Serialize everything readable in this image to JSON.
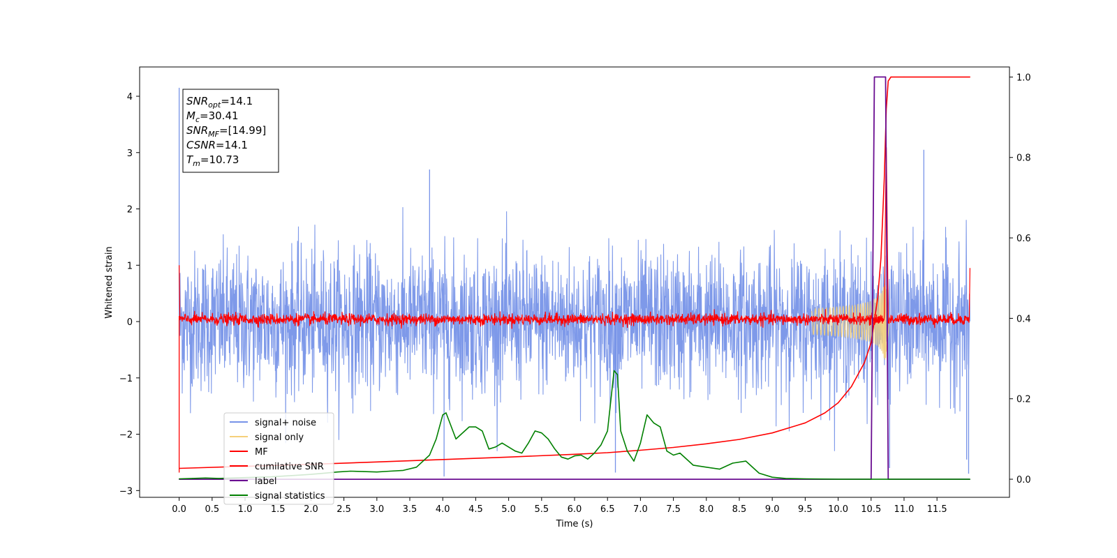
{
  "chart_data": {
    "type": "line",
    "xlabel": "Time (s)",
    "ylabel": "Whitened strain",
    "xlim": [
      -0.6,
      12.6
    ],
    "ylim": [
      -3.12,
      4.52
    ],
    "ylim_right": [
      -0.045,
      1.025
    ],
    "x_ticks": [
      0.0,
      0.5,
      1.0,
      1.5,
      2.0,
      2.5,
      3.0,
      3.5,
      4.0,
      4.5,
      5.0,
      5.5,
      6.0,
      6.5,
      7.0,
      7.5,
      8.0,
      8.5,
      9.0,
      9.5,
      10.0,
      10.5,
      11.0,
      11.5
    ],
    "x_tick_labels": [
      "0.0",
      "0.5",
      "1.0",
      "1.5",
      "2.0",
      "2.5",
      "3.0",
      "3.5",
      "4.0",
      "4.5",
      "5.0",
      "5.5",
      "6.0",
      "6.5",
      "7.0",
      "7.5",
      "8.0",
      "8.5",
      "9.0",
      "9.5",
      "10.0",
      "10.5",
      "11.0",
      "11.5"
    ],
    "y_ticks": [
      -3,
      -2,
      -1,
      0,
      1,
      2,
      3,
      4
    ],
    "y_tick_labels": [
      "−3",
      "−2",
      "−1",
      "0",
      "1",
      "2",
      "3",
      "4"
    ],
    "y_right_ticks": [
      0.0,
      0.2,
      0.4,
      0.6,
      0.8,
      1.0
    ],
    "y_right_tick_labels": [
      "0.0",
      "0.2",
      "0.4",
      "0.6",
      "0.8",
      "1.0"
    ],
    "legend_placement": "lower-left",
    "grid": false,
    "annotation": {
      "lines": [
        {
          "sym": "SNR",
          "sub": "opt",
          "val": "=14.1"
        },
        {
          "sym": "M",
          "sub": "c",
          "val": "=30.41"
        },
        {
          "sym": "SNR",
          "sub": "MF",
          "val": "=[14.99]"
        },
        {
          "sym": "CSNR",
          "sub": "",
          "val": "=14.1"
        },
        {
          "sym": "T",
          "sub": "m",
          "val": "=10.73"
        }
      ]
    },
    "series": [
      {
        "name": "signal+ noise",
        "axis": "left",
        "color": "#7793e8",
        "kind": "noise",
        "amplitude_std": 0.62,
        "outlier_spikes": [
          [
            0.0,
            4.15
          ],
          [
            3.8,
            2.7
          ],
          [
            4.02,
            -2.75
          ],
          [
            6.62,
            -2.68
          ],
          [
            11.3,
            3.05
          ],
          [
            10.78,
            -2.6
          ],
          [
            11.98,
            -2.7
          ],
          [
            11.95,
            -2.45
          ]
        ]
      },
      {
        "name": "signal only",
        "axis": "left",
        "color": "#f5d07a",
        "kind": "chirp",
        "merger_time": 10.73,
        "peak_amplitude": 1.7
      },
      {
        "name": "MF",
        "axis": "left",
        "color": "#ff0000",
        "kind": "mf",
        "baseline": 0.04,
        "noise_std": 0.05,
        "edge_points": [
          [
            0.0,
            1.0
          ],
          [
            0.0,
            -2.68
          ],
          [
            12.0,
            0.95
          ],
          [
            12.0,
            0.0
          ]
        ],
        "peak": [
          10.73,
          3.2
        ]
      },
      {
        "name": "cumilative SNR",
        "axis": "right",
        "color": "#ff0000",
        "x": [
          0.0,
          1.0,
          2.0,
          3.0,
          4.0,
          5.0,
          6.0,
          6.5,
          7.0,
          7.5,
          8.0,
          8.5,
          9.0,
          9.5,
          9.8,
          10.0,
          10.2,
          10.4,
          10.5,
          10.6,
          10.65,
          10.7,
          10.73,
          10.76,
          10.8,
          11.0,
          12.0
        ],
        "y": [
          0.027,
          0.032,
          0.037,
          0.043,
          0.049,
          0.055,
          0.062,
          0.066,
          0.072,
          0.079,
          0.088,
          0.099,
          0.115,
          0.14,
          0.165,
          0.19,
          0.23,
          0.29,
          0.34,
          0.45,
          0.55,
          0.75,
          0.92,
          0.99,
          1.0,
          1.0,
          1.0
        ]
      },
      {
        "name": "label",
        "axis": "right",
        "color": "#6a0d91",
        "x": [
          0.0,
          10.5,
          10.55,
          10.65,
          10.68,
          10.72,
          10.76,
          12.0
        ],
        "y": [
          0.0,
          0.0,
          1.0,
          1.0,
          1.0,
          1.0,
          0.0,
          0.0
        ]
      },
      {
        "name": "signal statistics",
        "axis": "right",
        "color": "#008000",
        "x": [
          0.0,
          0.2,
          0.4,
          0.6,
          0.8,
          1.0,
          1.2,
          1.4,
          1.6,
          1.8,
          2.0,
          2.2,
          2.4,
          2.6,
          2.8,
          3.0,
          3.2,
          3.4,
          3.6,
          3.8,
          3.9,
          4.0,
          4.05,
          4.2,
          4.4,
          4.5,
          4.6,
          4.7,
          4.8,
          4.9,
          5.0,
          5.1,
          5.2,
          5.3,
          5.4,
          5.5,
          5.6,
          5.7,
          5.8,
          5.9,
          6.0,
          6.1,
          6.2,
          6.3,
          6.4,
          6.5,
          6.6,
          6.65,
          6.7,
          6.8,
          6.9,
          7.0,
          7.1,
          7.2,
          7.3,
          7.4,
          7.5,
          7.6,
          7.8,
          8.0,
          8.2,
          8.4,
          8.6,
          8.8,
          9.0,
          9.2,
          9.5,
          10.0,
          10.5,
          11.0,
          11.5,
          12.0
        ],
        "y": [
          0.001,
          0.002,
          0.003,
          0.002,
          0.003,
          0.004,
          0.005,
          0.006,
          0.008,
          0.01,
          0.012,
          0.015,
          0.018,
          0.02,
          0.019,
          0.018,
          0.02,
          0.022,
          0.03,
          0.06,
          0.1,
          0.16,
          0.165,
          0.1,
          0.13,
          0.13,
          0.12,
          0.075,
          0.08,
          0.09,
          0.08,
          0.07,
          0.065,
          0.09,
          0.12,
          0.115,
          0.1,
          0.075,
          0.055,
          0.05,
          0.058,
          0.06,
          0.05,
          0.065,
          0.085,
          0.12,
          0.27,
          0.26,
          0.12,
          0.07,
          0.045,
          0.09,
          0.16,
          0.14,
          0.13,
          0.07,
          0.06,
          0.065,
          0.035,
          0.03,
          0.025,
          0.04,
          0.045,
          0.015,
          0.005,
          0.002,
          0.001,
          0.0,
          0.0,
          0.0,
          0.0,
          0.0
        ]
      }
    ]
  }
}
